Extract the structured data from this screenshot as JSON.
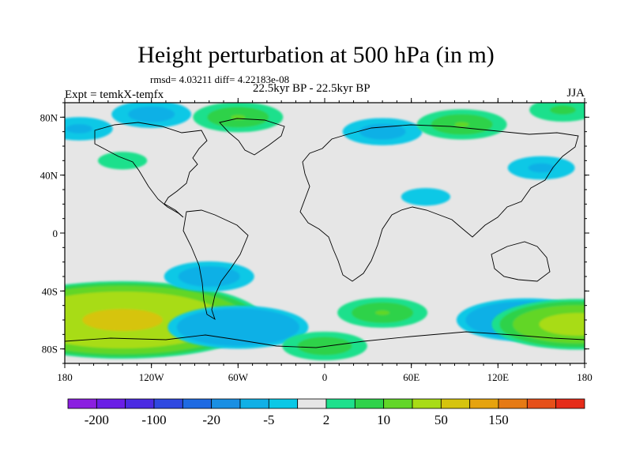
{
  "header": {
    "title": "Height perturbation at 500 hPa (in m)",
    "stats": "rmsd= 4.03211 diff= 4.22183e-08",
    "experiment": "Expt = temkX-temfx",
    "period": "22.5kyr BP - 22.5kyr BP",
    "season": "JJA"
  },
  "chart_data": {
    "type": "heatmap",
    "title": "Height perturbation at 500 hPa (in m)",
    "xlabel": "",
    "ylabel": "",
    "xlim": [
      -180,
      180
    ],
    "ylim": [
      -90,
      90
    ],
    "x_ticks": [
      {
        "value": -180,
        "label": "180"
      },
      {
        "value": -120,
        "label": "120W"
      },
      {
        "value": -60,
        "label": "60W"
      },
      {
        "value": 0,
        "label": "0"
      },
      {
        "value": 60,
        "label": "60E"
      },
      {
        "value": 120,
        "label": "120E"
      },
      {
        "value": 180,
        "label": "180"
      }
    ],
    "y_ticks": [
      {
        "value": 80,
        "label": "80N"
      },
      {
        "value": 40,
        "label": "40N"
      },
      {
        "value": 0,
        "label": "0"
      },
      {
        "value": -40,
        "label": "40S"
      },
      {
        "value": -80,
        "label": "80S"
      }
    ],
    "colorbar": {
      "colors": [
        "#8b1fe0",
        "#6a1ee6",
        "#4b2be2",
        "#2f48e0",
        "#1e6ae2",
        "#1a8fe3",
        "#11b0e6",
        "#0ac8e6",
        "#e6e6e6",
        "#1ee08c",
        "#2fd24a",
        "#62d628",
        "#a8dc16",
        "#d6c40e",
        "#e6a30e",
        "#e67a14",
        "#e6501a",
        "#e62c1a"
      ],
      "labels": [
        {
          "boundary": 1,
          "text": "-200"
        },
        {
          "boundary": 3,
          "text": "-100"
        },
        {
          "boundary": 5,
          "text": "-20"
        },
        {
          "boundary": 7,
          "text": "-5"
        },
        {
          "boundary": 9,
          "text": "2"
        },
        {
          "boundary": 11,
          "text": "10"
        },
        {
          "boundary": 13,
          "text": "50"
        },
        {
          "boundary": 15,
          "text": "150"
        }
      ]
    },
    "anomalies": [
      {
        "lon": -140,
        "lat": -60,
        "value": 60
      },
      {
        "lon": -80,
        "lat": -30,
        "value": -10
      },
      {
        "lon": -60,
        "lat": -65,
        "value": -22
      },
      {
        "lon": 140,
        "lat": -60,
        "value": -22
      },
      {
        "lon": 40,
        "lat": -55,
        "value": 10
      },
      {
        "lon": 0,
        "lat": -78,
        "value": 9
      },
      {
        "lon": 175,
        "lat": -63,
        "value": 30
      },
      {
        "lon": -60,
        "lat": 80,
        "value": 10
      },
      {
        "lon": -120,
        "lat": 82,
        "value": -8
      },
      {
        "lon": -170,
        "lat": 72,
        "value": -6
      },
      {
        "lon": 40,
        "lat": 70,
        "value": -8
      },
      {
        "lon": 95,
        "lat": 75,
        "value": 10
      },
      {
        "lon": 150,
        "lat": 45,
        "value": -6
      },
      {
        "lon": -140,
        "lat": 50,
        "value": 4
      },
      {
        "lon": 165,
        "lat": 85,
        "value": 6
      },
      {
        "lon": 70,
        "lat": 25,
        "value": -4
      }
    ]
  }
}
